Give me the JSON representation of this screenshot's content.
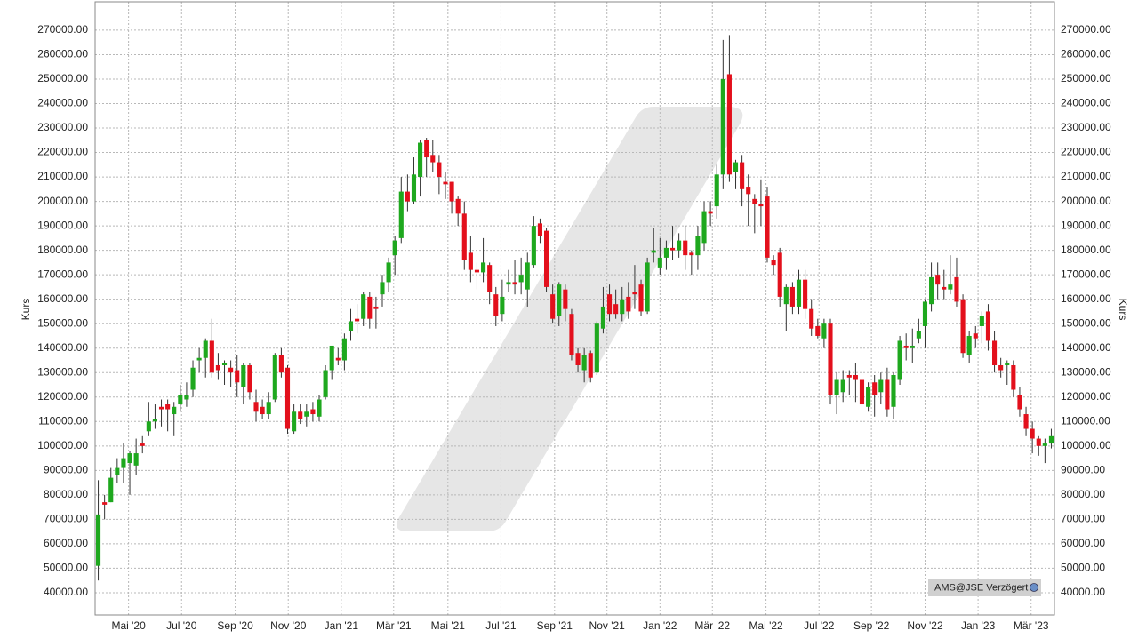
{
  "chart_data": {
    "type": "candlestick",
    "y_label": "Kurs",
    "annotation": "AMS@JSE Verzögert",
    "up_color": "#1ea81e",
    "down_color": "#e3101c",
    "grid": true,
    "open": [
      51000,
      77000,
      77000,
      88000,
      91000,
      93000,
      92000,
      101000,
      106000,
      110000,
      116000,
      117000,
      113000,
      117000,
      119000,
      123000,
      135000,
      136000,
      143000,
      133000,
      133000,
      132000,
      131000,
      124000,
      133000,
      118000,
      116000,
      113000,
      119000,
      137000,
      132000,
      106000,
      114000,
      112000,
      115000,
      112000,
      120000,
      131000,
      136000,
      135000,
      147000,
      152000,
      152000,
      161000,
      157000,
      162000,
      167000,
      178000,
      185000,
      204000,
      200000,
      210000,
      225000,
      219000,
      216000,
      208000,
      208000,
      201000,
      195000,
      179000,
      172000,
      171000,
      174000,
      162000,
      154000,
      166000,
      167000,
      167000,
      164000,
      174000,
      191000,
      188000,
      162000,
      153000,
      164000,
      154000,
      138000,
      131000,
      138000,
      130000,
      148000,
      162000,
      158000,
      154000,
      161000,
      163000,
      166000,
      155000,
      179000,
      173000,
      177000,
      181000,
      180000,
      184000,
      179000,
      178000,
      183000,
      196000,
      198000,
      211000,
      252000,
      212000,
      216000,
      206000,
      201000,
      199000,
      202000,
      176000,
      179000,
      158000,
      165000,
      157000,
      168000,
      156000,
      149000,
      144000,
      150000,
      121000,
      122000,
      129000,
      129000,
      127000,
      116000,
      126000,
      122000,
      127000,
      116000,
      127000,
      141000,
      140000,
      144000,
      149000,
      158000,
      170000,
      165000,
      164000,
      169000,
      160000,
      137000,
      146000,
      149000,
      155000,
      143000,
      133000,
      133000,
      133000,
      121000,
      113000,
      107000,
      103000,
      100000,
      101000
    ],
    "high": [
      86000,
      80000,
      91000,
      95000,
      101000,
      98000,
      103000,
      104000,
      118000,
      117000,
      119000,
      119000,
      118000,
      125000,
      126000,
      135000,
      140000,
      144000,
      152000,
      138000,
      135000,
      135000,
      137000,
      134000,
      134000,
      123000,
      119000,
      122000,
      138000,
      140000,
      133000,
      117000,
      117000,
      117000,
      118000,
      121000,
      133000,
      141000,
      140000,
      146000,
      156000,
      158000,
      163000,
      163000,
      161000,
      170000,
      177000,
      186000,
      210000,
      211000,
      218000,
      225000,
      226000,
      225000,
      219000,
      212000,
      208000,
      202000,
      200000,
      186000,
      175000,
      185000,
      175000,
      165000,
      168000,
      172000,
      176000,
      177000,
      179000,
      194000,
      193000,
      189000,
      166000,
      167000,
      166000,
      156000,
      140000,
      140000,
      139000,
      151000,
      165000,
      166000,
      164000,
      165000,
      167000,
      174000,
      168000,
      177000,
      189000,
      185000,
      184000,
      190000,
      187000,
      190000,
      180000,
      190000,
      200000,
      200000,
      215000,
      266000,
      268000,
      217000,
      219000,
      211000,
      203000,
      209000,
      206000,
      178000,
      181000,
      166000,
      167000,
      172000,
      172000,
      160000,
      152000,
      152000,
      152000,
      130000,
      131000,
      131000,
      134000,
      129000,
      126000,
      129000,
      130000,
      132000,
      130000,
      145000,
      146000,
      148000,
      152000,
      160000,
      175000,
      175000,
      172000,
      178000,
      177000,
      162000,
      147000,
      149000,
      155000,
      158000,
      147000,
      136000,
      135000,
      135000,
      124000,
      116000,
      110000,
      104000,
      103000,
      107000
    ],
    "low": [
      45000,
      70000,
      77000,
      85000,
      85000,
      80000,
      88000,
      97000,
      104000,
      107000,
      108000,
      106000,
      104000,
      114000,
      116000,
      120000,
      130000,
      128000,
      128000,
      127000,
      125000,
      124000,
      120000,
      117000,
      119000,
      110000,
      111000,
      111000,
      118000,
      128000,
      105000,
      105000,
      109000,
      108000,
      110000,
      110000,
      119000,
      127000,
      133000,
      131000,
      143000,
      146000,
      149000,
      148000,
      148000,
      157000,
      163000,
      170000,
      183000,
      196000,
      199000,
      202000,
      210000,
      212000,
      203000,
      201000,
      195000,
      190000,
      172000,
      167000,
      164000,
      167000,
      158000,
      149000,
      151000,
      163000,
      162000,
      162000,
      157000,
      173000,
      183000,
      163000,
      150000,
      149000,
      151000,
      135000,
      130000,
      126000,
      126000,
      129000,
      146000,
      151000,
      152000,
      151000,
      152000,
      156000,
      153000,
      154000,
      175000,
      170000,
      172000,
      176000,
      177000,
      172000,
      170000,
      172000,
      180000,
      190000,
      193000,
      205000,
      208000,
      205000,
      198000,
      190000,
      187000,
      190000,
      175000,
      170000,
      157000,
      147000,
      154000,
      154000,
      152000,
      145000,
      144000,
      140000,
      117000,
      113000,
      118000,
      121000,
      118000,
      116000,
      114000,
      112000,
      117000,
      112000,
      111000,
      125000,
      135000,
      134000,
      142000,
      140000,
      155000,
      160000,
      160000,
      162000,
      157000,
      136000,
      134000,
      140000,
      142000,
      139000,
      130000,
      128000,
      125000,
      120000,
      112000,
      104000,
      97000,
      96000,
      93000,
      99000
    ],
    "close": [
      72000,
      76000,
      87000,
      91000,
      95000,
      97000,
      97000,
      100000,
      110000,
      111000,
      115000,
      115000,
      116000,
      121000,
      121000,
      132000,
      136000,
      143000,
      130000,
      131000,
      134000,
      130000,
      126000,
      133000,
      122000,
      114000,
      113000,
      118000,
      137000,
      130000,
      107000,
      114000,
      111000,
      114000,
      113000,
      119000,
      131000,
      141000,
      135000,
      144000,
      151000,
      151000,
      162000,
      152000,
      156000,
      167000,
      175000,
      184000,
      204000,
      200000,
      211000,
      224000,
      218000,
      216000,
      210000,
      207000,
      200000,
      195000,
      176000,
      172000,
      171000,
      175000,
      163000,
      153000,
      161000,
      167000,
      166000,
      170000,
      175000,
      190000,
      186000,
      165000,
      152000,
      166000,
      156000,
      137000,
      133000,
      137000,
      128000,
      150000,
      157000,
      154000,
      154000,
      160000,
      155000,
      162000,
      155000,
      175000,
      180000,
      177000,
      181000,
      180000,
      184000,
      178000,
      178000,
      186000,
      196000,
      195000,
      211000,
      250000,
      211000,
      216000,
      205000,
      203000,
      199000,
      198000,
      177000,
      174000,
      161000,
      165000,
      157000,
      168000,
      156000,
      148000,
      145000,
      150000,
      121000,
      127000,
      127000,
      128000,
      127000,
      117000,
      124000,
      121000,
      127000,
      115000,
      129000,
      143000,
      140000,
      141000,
      147000,
      159000,
      169000,
      166000,
      164000,
      166000,
      159000,
      138000,
      145000,
      144000,
      153000,
      143000,
      133000,
      131000,
      134000,
      123000,
      115000,
      107000,
      103000,
      100000,
      101000,
      104000
    ],
    "xlim": [
      -0.5,
      151.5
    ],
    "xticks": [
      {
        "value": 4.8,
        "label": "Mai '20"
      },
      {
        "value": 13.2,
        "label": "Jul '20"
      },
      {
        "value": 21.7,
        "label": "Sep '20"
      },
      {
        "value": 30.1,
        "label": "Nov '20"
      },
      {
        "value": 38.5,
        "label": "Jan '21"
      },
      {
        "value": 46.8,
        "label": "Mär '21"
      },
      {
        "value": 55.4,
        "label": "Mai '21"
      },
      {
        "value": 63.8,
        "label": "Jul '21"
      },
      {
        "value": 72.3,
        "label": "Sep '21"
      },
      {
        "value": 80.6,
        "label": "Nov '21"
      },
      {
        "value": 89.0,
        "label": "Jan '22"
      },
      {
        "value": 97.3,
        "label": "Mär '22"
      },
      {
        "value": 105.8,
        "label": "Mai '22"
      },
      {
        "value": 114.2,
        "label": "Jul '22"
      },
      {
        "value": 122.5,
        "label": "Sep '22"
      },
      {
        "value": 131.0,
        "label": "Nov '22"
      },
      {
        "value": 139.4,
        "label": "Jan '23"
      },
      {
        "value": 147.8,
        "label": "Mär '23"
      }
    ],
    "ylim": [
      30900,
      281600
    ],
    "yticks": [
      {
        "value": 40000,
        "label": "40000.00"
      },
      {
        "value": 50000,
        "label": "50000.00"
      },
      {
        "value": 60000,
        "label": "60000.00"
      },
      {
        "value": 70000,
        "label": "70000.00"
      },
      {
        "value": 80000,
        "label": "80000.00"
      },
      {
        "value": 90000,
        "label": "90000.00"
      },
      {
        "value": 100000,
        "label": "100000.00"
      },
      {
        "value": 110000,
        "label": "110000.00"
      },
      {
        "value": 120000,
        "label": "120000.00"
      },
      {
        "value": 130000,
        "label": "130000.00"
      },
      {
        "value": 140000,
        "label": "140000.00"
      },
      {
        "value": 150000,
        "label": "150000.00"
      },
      {
        "value": 160000,
        "label": "160000.00"
      },
      {
        "value": 170000,
        "label": "170000.00"
      },
      {
        "value": 180000,
        "label": "180000.00"
      },
      {
        "value": 190000,
        "label": "190000.00"
      },
      {
        "value": 200000,
        "label": "200000.00"
      },
      {
        "value": 210000,
        "label": "210000.00"
      },
      {
        "value": 220000,
        "label": "220000.00"
      },
      {
        "value": 230000,
        "label": "230000.00"
      },
      {
        "value": 240000,
        "label": "240000.00"
      },
      {
        "value": 250000,
        "label": "250000.00"
      },
      {
        "value": 260000,
        "label": "260000.00"
      },
      {
        "value": 270000,
        "label": "270000.00"
      }
    ]
  }
}
